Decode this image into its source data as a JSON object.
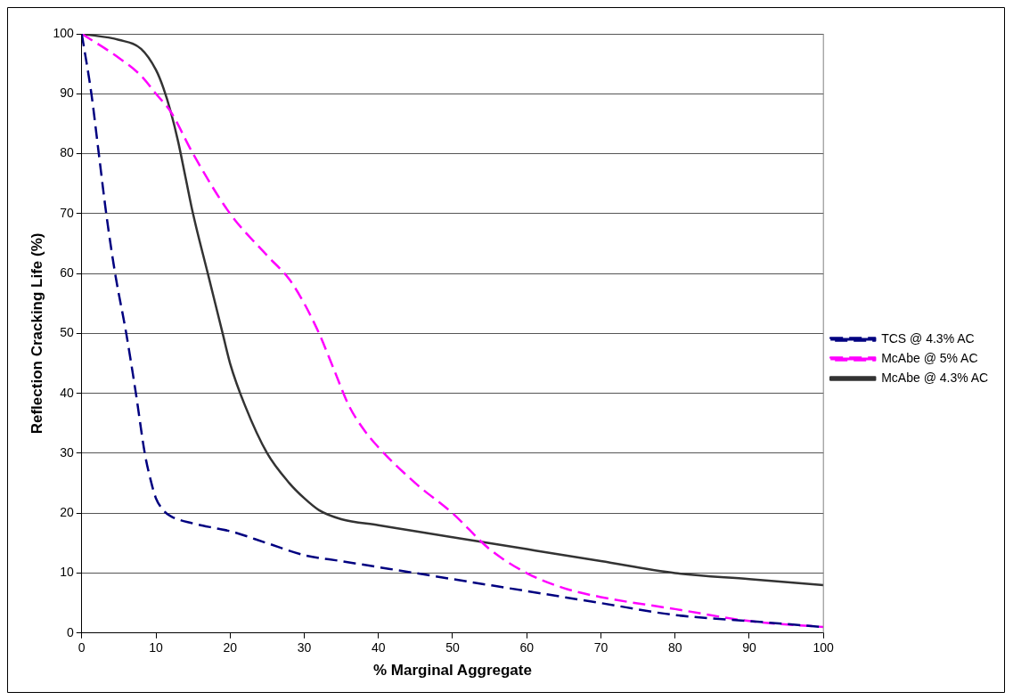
{
  "chart_data": {
    "type": "line",
    "xlabel": "% Marginal Aggregate",
    "ylabel": "Reflection Cracking Life (%)",
    "xlim": [
      0,
      100
    ],
    "xticks": [
      0,
      10,
      20,
      30,
      40,
      50,
      60,
      70,
      80,
      90,
      100
    ],
    "ylim": [
      0,
      100
    ],
    "yticks": [
      0,
      10,
      20,
      30,
      40,
      50,
      60,
      70,
      80,
      90,
      100
    ],
    "grid": "y",
    "legend": "right",
    "marker": "none",
    "series": [
      {
        "name": "TCS @ 4.3% AC",
        "color": "#000080",
        "line_style": "dashed",
        "x": [
          0,
          1.3,
          2.3,
          3.3,
          4.5,
          6,
          7.3,
          8.5,
          9.4,
          10,
          11,
          12,
          15,
          18,
          20,
          25,
          30,
          35,
          40,
          45,
          50,
          60,
          70,
          80,
          90,
          100
        ],
        "values": [
          100,
          90,
          80,
          70,
          60,
          50,
          40,
          30,
          25,
          22.5,
          20.5,
          19.5,
          18.3,
          17.5,
          17,
          15,
          13,
          12,
          11,
          10,
          9,
          7,
          5,
          3,
          2,
          1
        ]
      },
      {
        "name": "McAbe @ 5% AC",
        "color": "#ff00ff",
        "line_style": "dashed",
        "x": [
          0,
          5,
          8,
          10,
          12,
          15,
          20,
          25,
          28,
          30,
          32,
          34,
          36,
          38,
          40,
          45,
          50,
          55,
          60,
          65,
          70,
          80,
          90,
          100
        ],
        "values": [
          100,
          96,
          93,
          90,
          87,
          80,
          70,
          63,
          59,
          55,
          50,
          44,
          38,
          34,
          31,
          25,
          20,
          14,
          10,
          7.5,
          6,
          4,
          2,
          1
        ]
      },
      {
        "name": "McAbe @ 4.3% AC",
        "color": "#333333",
        "line_style": "solid",
        "x": [
          0,
          5,
          8,
          10,
          11,
          12,
          13,
          14,
          15,
          17,
          19,
          20,
          22,
          25,
          28,
          30,
          32,
          35,
          40,
          45,
          50,
          60,
          70,
          80,
          90,
          100
        ],
        "values": [
          100,
          99,
          97.5,
          94,
          91,
          87,
          82,
          76,
          70,
          60,
          50,
          45,
          38,
          30,
          25,
          22.5,
          20.5,
          19,
          18,
          17,
          16,
          14,
          12,
          10,
          9,
          8
        ]
      }
    ]
  }
}
